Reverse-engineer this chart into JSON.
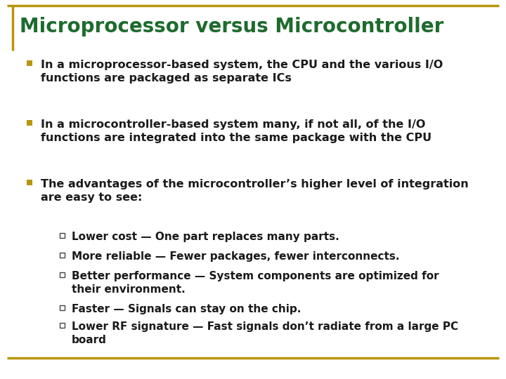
{
  "title": "Microprocessor versus Microcontroller",
  "title_color": "#1e6b2e",
  "title_fontsize": 20,
  "background_color": "#ffffff",
  "accent_color": "#b8960c",
  "bullet_color": "#b8960c",
  "sub_bullet_color": "#2e6b2e",
  "bullet_points": [
    {
      "text": "In a microprocessor-based system, the CPU and the various I/O\nfunctions are packaged as separate ICs",
      "level": 1
    },
    {
      "text": "In a microcontroller-based system many, if not all, of the I/O\nfunctions are integrated into the same package with the CPU",
      "level": 1
    },
    {
      "text": "The advantages of the microcontroller’s higher level of integration\nare easy to see:",
      "level": 1
    },
    {
      "text": "Lower cost — One part replaces many parts.",
      "level": 2
    },
    {
      "text": "More reliable — Fewer packages, fewer interconnects.",
      "level": 2
    },
    {
      "text": "Better performance — System components are optimized for\ntheir environment.",
      "level": 2
    },
    {
      "text": "Faster — Signals can stay on the chip.",
      "level": 2
    },
    {
      "text": "Lower RF signature — Fast signals don’t radiate from a large PC\nboard",
      "level": 2
    }
  ],
  "text_color": "#1a1a1a",
  "body_fontsize": 11.5,
  "sub_fontsize": 11.0,
  "fig_width": 7.2,
  "fig_height": 5.4,
  "dpi": 100
}
